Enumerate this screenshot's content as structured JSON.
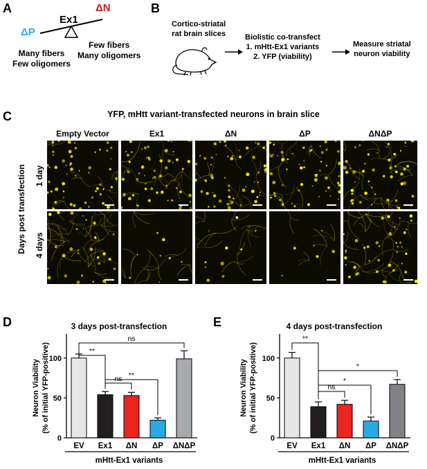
{
  "panel_letters": {
    "a": "A",
    "b": "B",
    "c": "C",
    "d": "D",
    "e": "E"
  },
  "panel_a": {
    "left_label": "ΔP",
    "center_label": "Ex1",
    "right_label": "ΔN",
    "left_desc": [
      "Many fibers",
      "Few oligomers"
    ],
    "right_desc": [
      "Few fibers",
      "Many oligomers"
    ],
    "colors": {
      "dp": "#29abe2",
      "dn": "#d7191c"
    }
  },
  "panel_b": {
    "step1": [
      "Cortico-striatal",
      "rat brain slices"
    ],
    "step2": [
      "Biolistic co-transfect",
      "1. mHtt-Ex1 variants",
      "2. YFP (viability)"
    ],
    "step3": [
      "Measure striatal",
      "neuron viability"
    ]
  },
  "panel_c": {
    "title": "YFP, mHtt variant-transfected neurons in brain slice",
    "columns": [
      "Empty Vector",
      "Ex1",
      "ΔN",
      "ΔP",
      "ΔNΔP"
    ],
    "row_axis_label": "Days post transfection",
    "rows": [
      "1 day",
      "4 days"
    ],
    "fluorescence_color": "#ffee00"
  },
  "chart_data": [
    {
      "type": "bar",
      "panel": "D",
      "title": "3 days post-transfection",
      "xlabel": "mHtt-Ex1 variants",
      "ylabel": "Neuron Viability",
      "ylabel2": "(% of initial YFP-positive)",
      "categories": [
        "EV",
        "Ex1",
        "ΔN",
        "ΔP",
        "ΔNΔP"
      ],
      "values": [
        100,
        54,
        53,
        22,
        99
      ],
      "errors": [
        5,
        4,
        4,
        3,
        10
      ],
      "colors": [
        "#e6e6e6",
        "#231f20",
        "#e8251f",
        "#29abe2",
        "#a7a9ac"
      ],
      "ylim": [
        0,
        125
      ],
      "yticks": [
        0,
        50,
        100
      ],
      "significance": [
        {
          "from": 0,
          "to": 1,
          "label": "**"
        },
        {
          "from": 1,
          "to": 2,
          "label": "ns"
        },
        {
          "from": 1,
          "to": 3,
          "label": "**"
        },
        {
          "from": 0,
          "to": 4,
          "label": "ns"
        }
      ]
    },
    {
      "type": "bar",
      "panel": "E",
      "title": "4 days post-transfection",
      "xlabel": "mHtt-Ex1 variants",
      "ylabel": "Neuron Viability",
      "ylabel2": "(% of initial YFP-positive)",
      "categories": [
        "EV",
        "Ex1",
        "ΔN",
        "ΔP",
        "ΔNΔP"
      ],
      "values": [
        100,
        39,
        42,
        21,
        67
      ],
      "errors": [
        7,
        6,
        5,
        5,
        6
      ],
      "colors": [
        "#e6e6e6",
        "#231f20",
        "#e8251f",
        "#29abe2",
        "#808285"
      ],
      "ylim": [
        0,
        125
      ],
      "yticks": [
        0,
        50,
        100
      ],
      "significance": [
        {
          "from": 0,
          "to": 1,
          "label": "**"
        },
        {
          "from": 1,
          "to": 2,
          "label": "ns"
        },
        {
          "from": 1,
          "to": 3,
          "label": "*"
        },
        {
          "from": 1,
          "to": 4,
          "label": "*"
        }
      ]
    }
  ]
}
